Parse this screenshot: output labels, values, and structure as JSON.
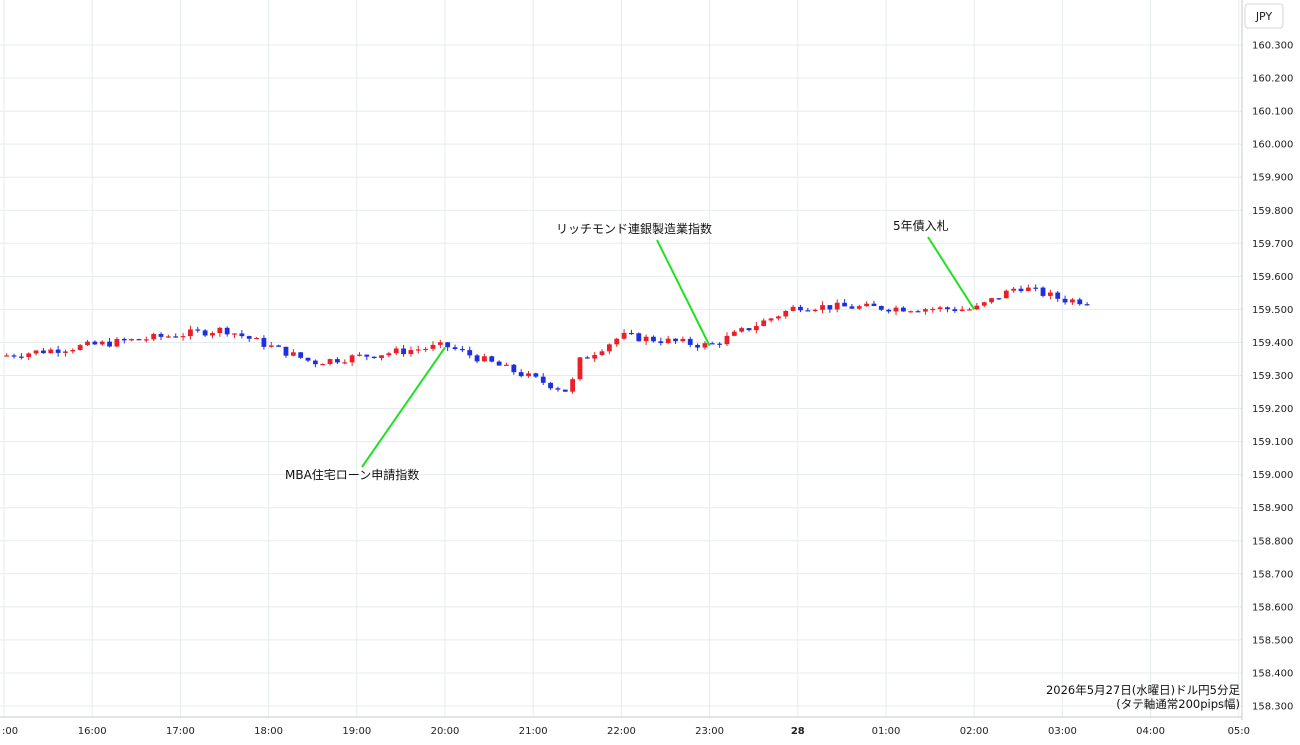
{
  "chart_data": {
    "type": "candlestick",
    "currency_label": "JPY",
    "y_ticks": [
      "160.300",
      "160.200",
      "160.100",
      "160.000",
      "159.900",
      "159.800",
      "159.700",
      "159.600",
      "159.500",
      "159.400",
      "159.300",
      "159.200",
      "159.100",
      "159.000",
      "158.900",
      "158.800",
      "158.700",
      "158.600",
      "158.500",
      "158.400",
      "158.300"
    ],
    "ylim": [
      158.285,
      160.38
    ],
    "x_ticks": [
      ":00",
      "16:00",
      "17:00",
      "18:00",
      "19:00",
      "20:00",
      "21:00",
      "22:00",
      "23:00",
      "28",
      "01:00",
      "02:00",
      "03:00",
      "04:00",
      "05:0"
    ],
    "x_tick_bold": [
      false,
      false,
      false,
      false,
      false,
      false,
      false,
      false,
      false,
      true,
      false,
      false,
      false,
      false,
      false
    ],
    "candle_count": 148,
    "candles_per_hour": 12,
    "up_color": "#e8202a",
    "down_color": "#1f2ee0",
    "grid": true,
    "annotations": [
      {
        "text": "MBA住宅ローン申請指数",
        "time": "20:00",
        "price": 159.385
      },
      {
        "text": "リッチモンド連銀製造業指数",
        "time": "23:00",
        "price": 159.39
      },
      {
        "text": "5年債入札",
        "time": "02:00",
        "price": 159.5
      }
    ],
    "footnote_line1": "2026年5月27日(水曜日)ドル円5分足",
    "footnote_line2": "(タテ軸通常200pips幅)",
    "key_prices": [
      {
        "time": "15:00",
        "price": 159.36
      },
      {
        "time": "17:30",
        "price": 159.44
      },
      {
        "time": "18:30",
        "price": 159.34
      },
      {
        "time": "20:00",
        "price": 159.39
      },
      {
        "time": "21:30",
        "price": 159.34
      },
      {
        "time": "21:25",
        "price": 159.25
      },
      {
        "time": "22:00",
        "price": 159.42
      },
      {
        "time": "23:00",
        "price": 159.39
      },
      {
        "time": "00:00",
        "price": 159.51
      },
      {
        "time": "02:00",
        "price": 159.5
      },
      {
        "time": "02:30",
        "price": 159.57
      },
      {
        "time": "03:00",
        "price": 159.53
      },
      {
        "time": "04:00",
        "price": 159.51
      },
      {
        "time": "05:00",
        "price": 159.52
      }
    ]
  }
}
